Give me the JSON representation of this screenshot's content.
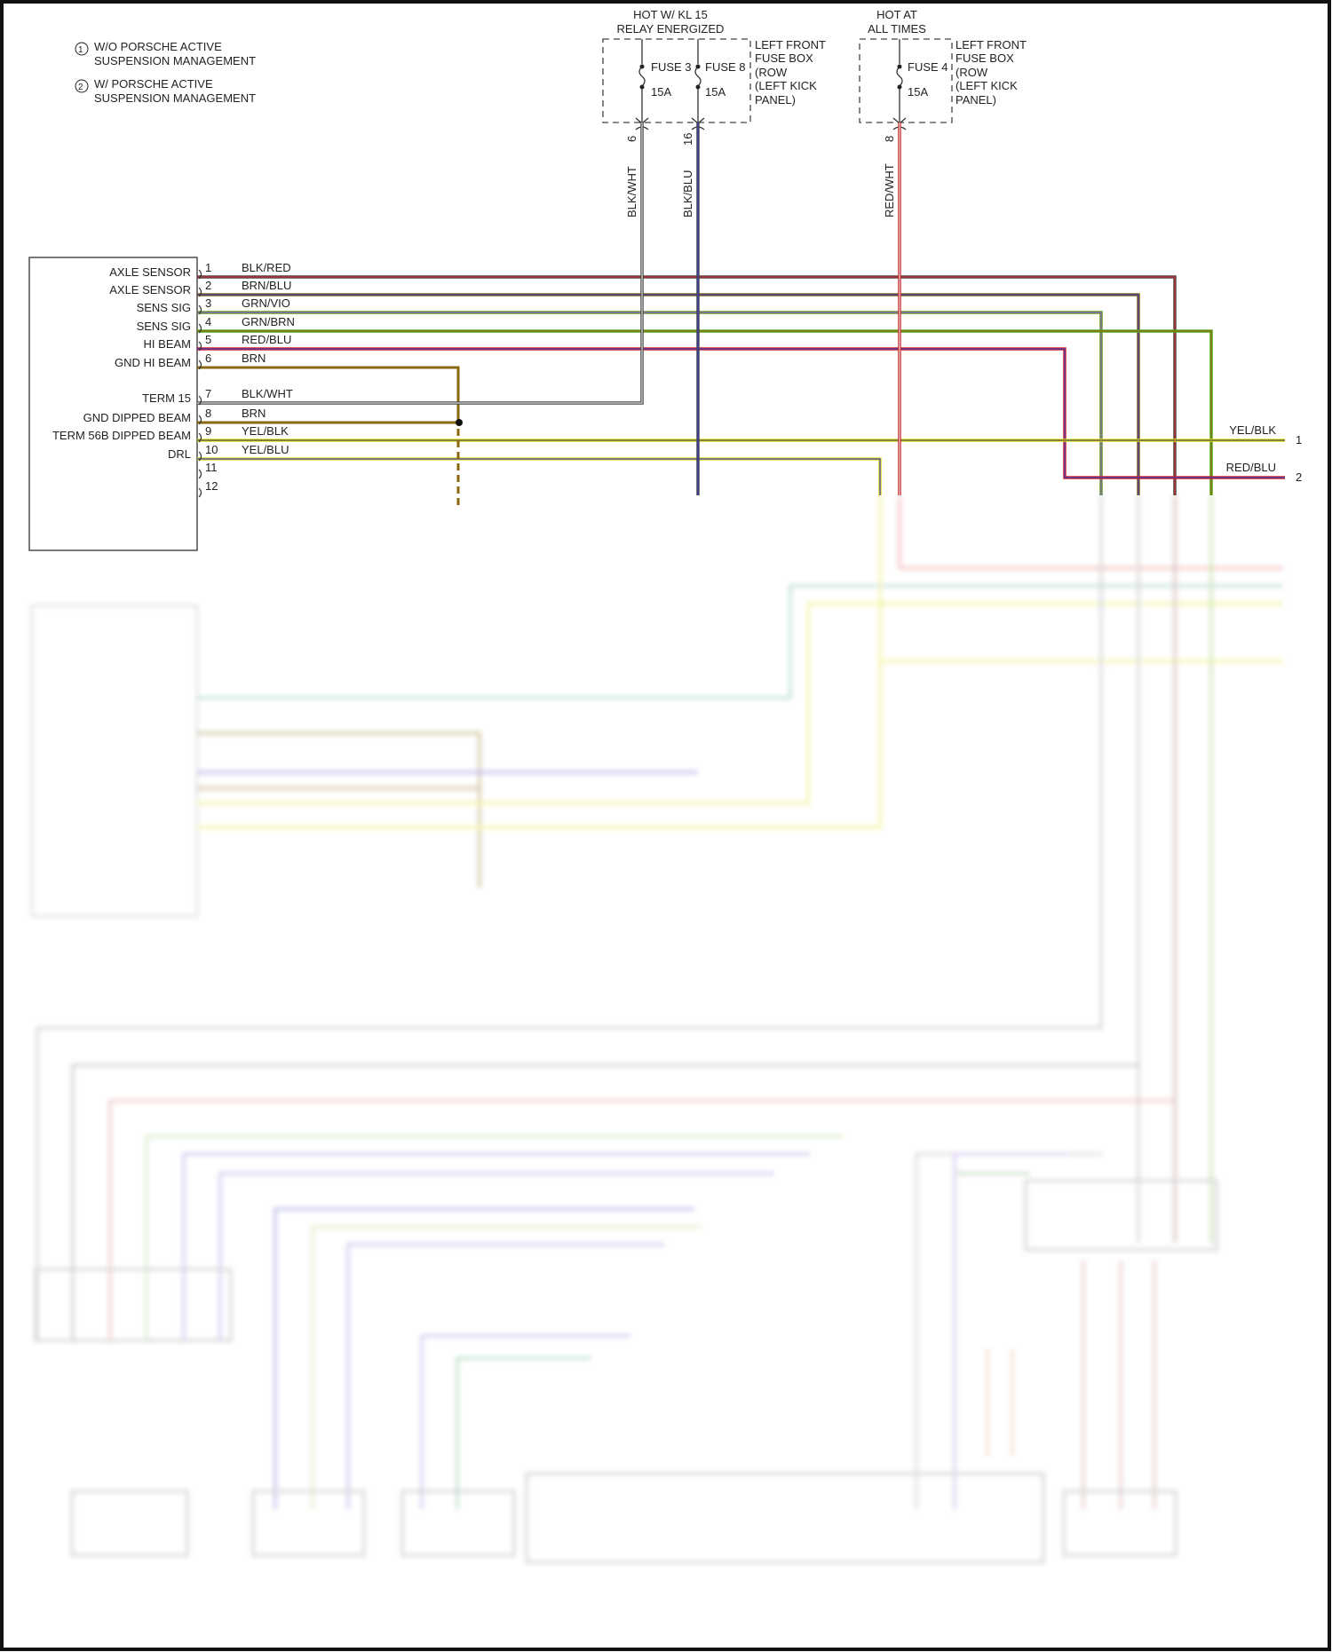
{
  "legend": [
    {
      "num": "1",
      "text1": "W/O PORSCHE ACTIVE",
      "text2": "SUSPENSION MANAGEMENT"
    },
    {
      "num": "2",
      "text1": "W/ PORSCHE ACTIVE",
      "text2": "SUSPENSION MANAGEMENT"
    }
  ],
  "fuse_box_1": {
    "title1": "HOT W/ KL 15",
    "title2": "RELAY ENERGIZED",
    "location": [
      "LEFT FRONT",
      "FUSE BOX",
      "(ROW",
      "(LEFT KICK",
      "PANEL)"
    ],
    "fuses": [
      {
        "name": "FUSE 3",
        "rating": "15A",
        "pin": "6",
        "wire": "BLK/WHT"
      },
      {
        "name": "FUSE 8",
        "rating": "15A",
        "pin": "16",
        "wire": "BLK/BLU"
      }
    ]
  },
  "fuse_box_2": {
    "title1": "HOT AT",
    "title2": "ALL TIMES",
    "location": [
      "LEFT FRONT",
      "FUSE BOX",
      "(ROW",
      "(LEFT KICK",
      "PANEL)"
    ],
    "fuses": [
      {
        "name": "FUSE 4",
        "rating": "15A",
        "pin": "8",
        "wire": "RED/WHT"
      }
    ]
  },
  "left_headlight_connector": {
    "pins": [
      {
        "num": "1",
        "label": "AXLE SENSOR",
        "wire": "BLK/RED"
      },
      {
        "num": "2",
        "label": "AXLE SENSOR",
        "wire": "BRN/BLU"
      },
      {
        "num": "3",
        "label": "SENS SIG",
        "wire": "GRN/VIO"
      },
      {
        "num": "4",
        "label": "SENS SIG",
        "wire": "GRN/BRN"
      },
      {
        "num": "5",
        "label": "HI BEAM",
        "wire": "RED/BLU"
      },
      {
        "num": "6",
        "label": "GND HI BEAM",
        "wire": "BRN"
      },
      {
        "num": "7",
        "label": "TERM 15",
        "wire": "BLK/WHT"
      },
      {
        "num": "8",
        "label": "GND DIPPED BEAM",
        "wire": "BRN"
      },
      {
        "num": "9",
        "label": "TERM 56B DIPPED BEAM",
        "wire": "YEL/BLK"
      },
      {
        "num": "10",
        "label": "DRL",
        "wire": "YEL/BLU"
      },
      {
        "num": "11",
        "label": "",
        "wire": ""
      },
      {
        "num": "12",
        "label": "",
        "wire": ""
      }
    ]
  },
  "right_terminals": [
    {
      "num": "1",
      "wire": "YEL/BLK"
    },
    {
      "num": "2",
      "wire": "RED/BLU"
    }
  ],
  "wire_colors": {
    "BLK": "#4a4a4a",
    "RED": "#d02828",
    "BRN": "#8a6810",
    "BLU": "#3838b8",
    "GRN": "#58a820",
    "VIO": "#a050c8",
    "YEL": "#e6e020",
    "WHT": "#d8d8d8"
  }
}
